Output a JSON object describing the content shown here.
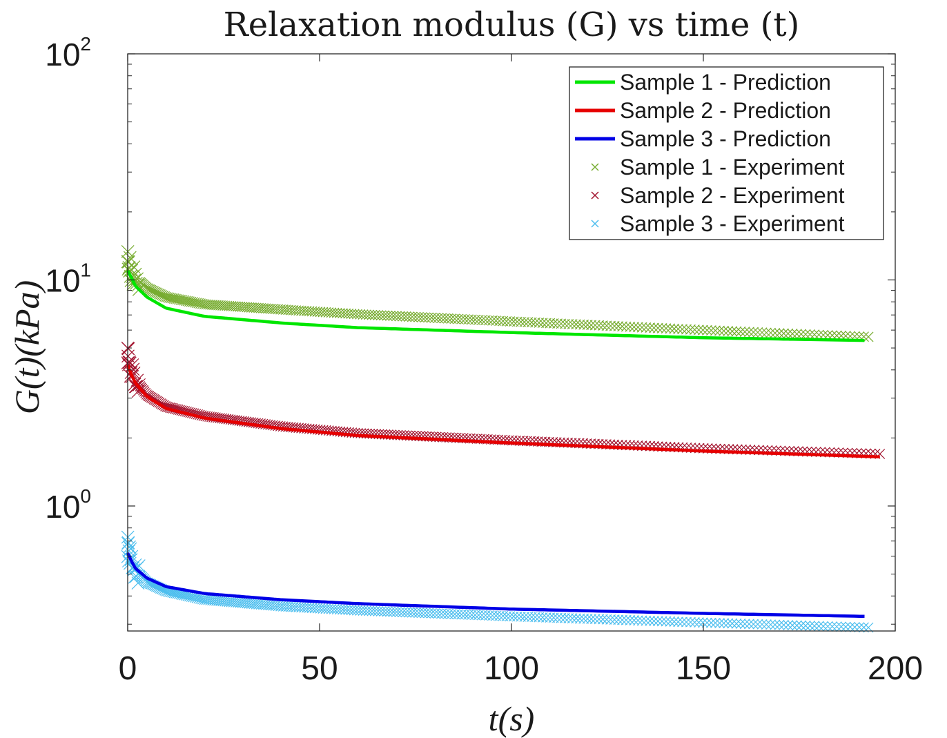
{
  "chart_data": {
    "type": "line",
    "title": "Relaxation modulus (G) vs time (t)",
    "xlabel": "t(s)",
    "ylabel": "G(t)(kPa)",
    "xlim": [
      0,
      200
    ],
    "ylim": [
      0.28,
      100
    ],
    "yscale": "log",
    "xticks": [
      {
        "label": "0",
        "value": 0
      },
      {
        "label": "50",
        "value": 50
      },
      {
        "label": "100",
        "value": 100
      },
      {
        "label": "150",
        "value": 150
      },
      {
        "label": "200",
        "value": 200
      }
    ],
    "yticks": [
      {
        "base": "10",
        "exp": "0",
        "value": 1
      },
      {
        "base": "10",
        "exp": "1",
        "value": 10
      },
      {
        "base": "10",
        "exp": "2",
        "value": 100
      }
    ],
    "legend_position": "top-right",
    "series": [
      {
        "name": "Sample 1 - Prediction",
        "kind": "line",
        "color": "#00e600",
        "x": [
          0,
          1,
          2,
          5,
          10,
          20,
          40,
          60,
          100,
          150,
          192
        ],
        "y": [
          11.0,
          10.2,
          9.4,
          8.4,
          7.5,
          6.9,
          6.45,
          6.15,
          5.85,
          5.55,
          5.4
        ]
      },
      {
        "name": "Sample 2 - Prediction",
        "kind": "line",
        "color": "#e60000",
        "x": [
          0,
          1,
          2,
          5,
          10,
          20,
          40,
          60,
          100,
          150,
          196
        ],
        "y": [
          4.2,
          3.8,
          3.5,
          3.05,
          2.7,
          2.45,
          2.2,
          2.05,
          1.9,
          1.75,
          1.65
        ]
      },
      {
        "name": "Sample 3 - Prediction",
        "kind": "line",
        "color": "#0000e6",
        "x": [
          0,
          1,
          2,
          5,
          10,
          20,
          40,
          60,
          100,
          150,
          192
        ],
        "y": [
          0.62,
          0.57,
          0.53,
          0.48,
          0.44,
          0.41,
          0.385,
          0.37,
          0.35,
          0.335,
          0.325
        ]
      },
      {
        "name": "Sample 1 - Experiment",
        "kind": "scatter",
        "marker": "x",
        "color": "#77ac30",
        "x": [
          0,
          1,
          2,
          5,
          10,
          20,
          40,
          60,
          100,
          150,
          193
        ],
        "y": [
          12.5,
          10.8,
          10.2,
          9.2,
          8.4,
          7.8,
          7.4,
          7.05,
          6.55,
          6.0,
          5.6
        ]
      },
      {
        "name": "Sample 2 - Experiment",
        "kind": "scatter",
        "marker": "x",
        "color": "#a2142f",
        "x": [
          0,
          1,
          2,
          5,
          10,
          20,
          40,
          60,
          100,
          150,
          196
        ],
        "y": [
          4.6,
          4.0,
          3.6,
          3.1,
          2.75,
          2.5,
          2.25,
          2.1,
          1.95,
          1.8,
          1.7
        ]
      },
      {
        "name": "Sample 3 - Experiment",
        "kind": "scatter",
        "marker": "x",
        "color": "#4dbeee",
        "x": [
          0,
          1,
          2,
          5,
          10,
          20,
          40,
          60,
          100,
          150,
          193
        ],
        "y": [
          0.66,
          0.56,
          0.52,
          0.46,
          0.42,
          0.385,
          0.36,
          0.345,
          0.325,
          0.305,
          0.29
        ]
      }
    ]
  }
}
